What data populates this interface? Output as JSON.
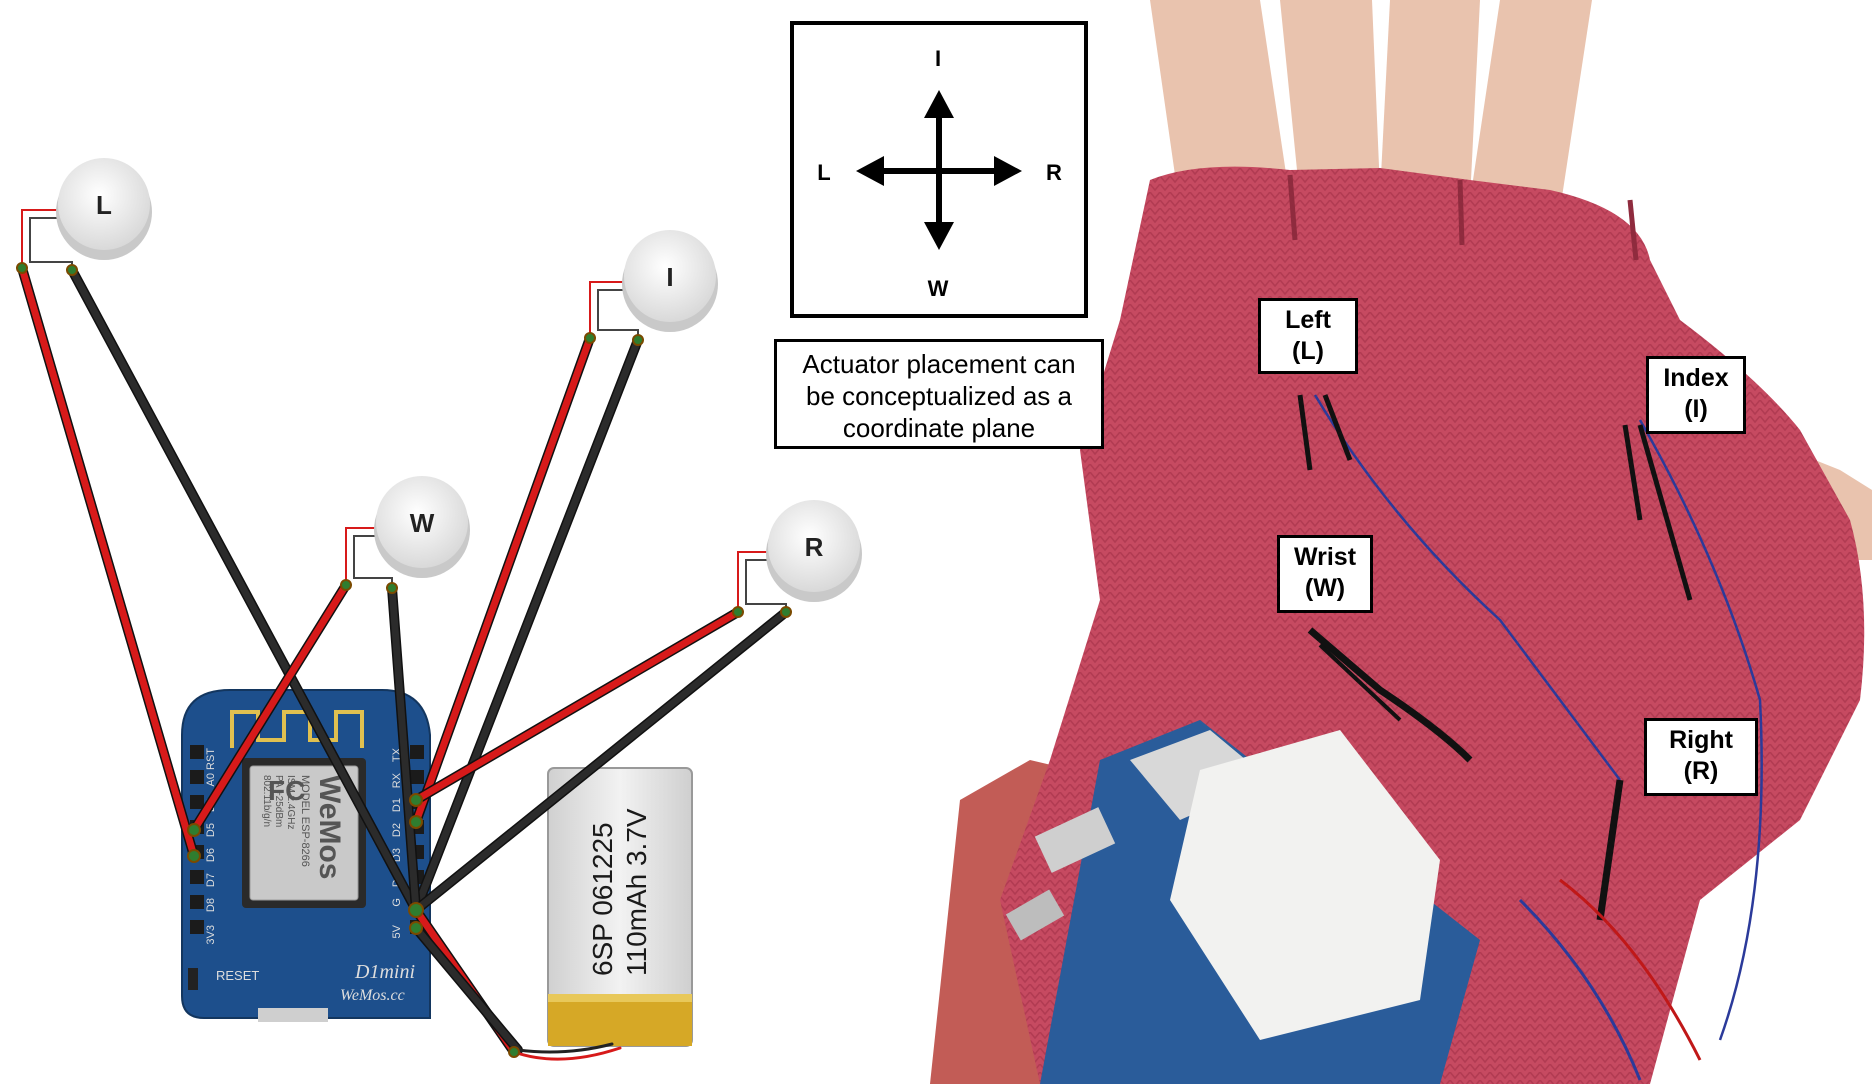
{
  "actuators": {
    "left": "L",
    "index": "I",
    "wrist": "W",
    "right": "R"
  },
  "coordinate_plane": {
    "top": "I",
    "left": "L",
    "right": "R",
    "bottom": "W"
  },
  "caption": {
    "line1": "Actuator placement can",
    "line2": "be conceptualized as a",
    "line3": "coordinate plane"
  },
  "board": {
    "brand": "WeMos",
    "model_line": "MODEL  ESP-8266",
    "spec1": "ISM 2.4GHz",
    "spec2": "PA +25dBm",
    "spec3": "802.11b/g/n",
    "fc": "FC",
    "reset": "RESET",
    "name": "D1mini",
    "site": "WeMos.cc",
    "pins_left": [
      "RST",
      "A0",
      "D0",
      "D5",
      "D6",
      "D7",
      "D8",
      "3V3"
    ],
    "pins_right": [
      "TX",
      "RX",
      "D1",
      "D2",
      "D3",
      "D4",
      "G",
      "5V"
    ]
  },
  "battery": {
    "line1": "6SP 061225",
    "line2": "110mAh 3.7V"
  },
  "glove_labels": {
    "left": {
      "name": "Left",
      "code": "(L)"
    },
    "index": {
      "name": "Index",
      "code": "(I)"
    },
    "wrist": {
      "name": "Wrist",
      "code": "(W)"
    },
    "right": {
      "name": "Right",
      "code": "(R)"
    }
  },
  "colors": {
    "wire_red": "#d71a1a",
    "wire_black": "#2b2b2b",
    "board_blue": "#1d4f8c",
    "glove_pink": "#c8495f",
    "skin": "#e9c3ae",
    "battery_gold": "#d6a826"
  }
}
